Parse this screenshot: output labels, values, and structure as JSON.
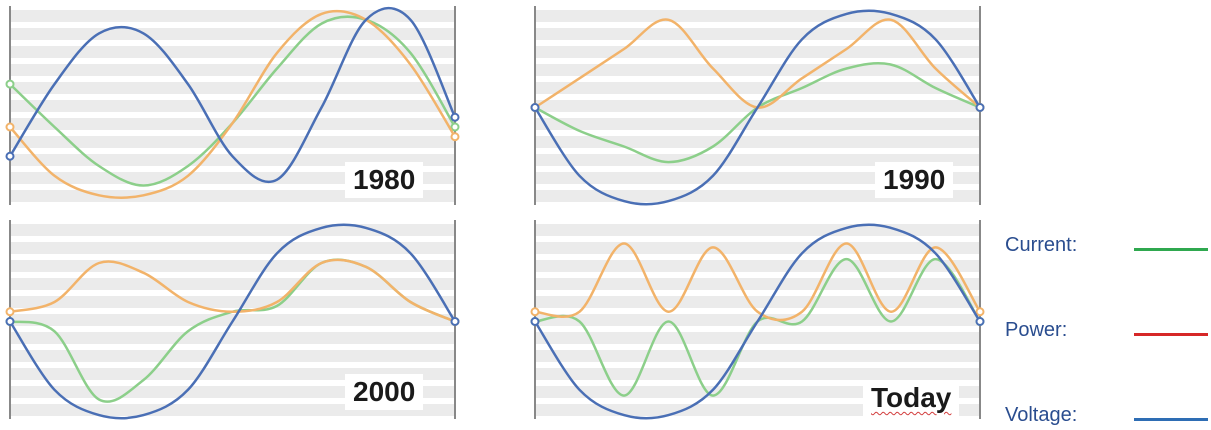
{
  "colors": {
    "current": "#8ccf8a",
    "power": "#f2b36a",
    "voltage": "#4a6fb5",
    "stripe": "#ebebeb",
    "axis": "#888888"
  },
  "legend": {
    "items": [
      {
        "label": "Current:",
        "swatch_color": "#2fa84f"
      },
      {
        "label": "Power:",
        "swatch_color": "#d62728"
      },
      {
        "label": "Voltage:",
        "swatch_color": "#2e6db4"
      }
    ]
  },
  "chart_data": [
    {
      "type": "line",
      "title": "1980",
      "x": [
        0,
        0.1,
        0.2,
        0.3,
        0.4,
        0.5,
        0.6,
        0.7,
        0.8,
        0.9,
        1
      ],
      "series": [
        {
          "values": [
            0.25,
            0.62,
            0.88,
            0.88,
            0.62,
            0.25,
            0.13,
            0.5,
            0.95,
            0.95,
            0.45
          ],
          "color_key": "voltage"
        },
        {
          "values": [
            0.62,
            0.4,
            0.2,
            0.1,
            0.2,
            0.42,
            0.7,
            0.93,
            0.95,
            0.78,
            0.4
          ],
          "color_key": "current"
        },
        {
          "values": [
            0.4,
            0.15,
            0.05,
            0.05,
            0.15,
            0.42,
            0.78,
            0.98,
            0.95,
            0.72,
            0.35
          ],
          "color_key": "power"
        }
      ]
    },
    {
      "type": "line",
      "title": "1990",
      "x": [
        0,
        0.1,
        0.2,
        0.3,
        0.4,
        0.5,
        0.6,
        0.7,
        0.8,
        0.9,
        1
      ],
      "series": [
        {
          "values": [
            0.5,
            0.15,
            0.02,
            0.02,
            0.15,
            0.5,
            0.85,
            0.98,
            0.98,
            0.85,
            0.5
          ],
          "color_key": "voltage"
        },
        {
          "values": [
            0.5,
            0.38,
            0.3,
            0.22,
            0.3,
            0.5,
            0.6,
            0.7,
            0.72,
            0.6,
            0.5
          ],
          "color_key": "current"
        },
        {
          "values": [
            0.5,
            0.65,
            0.8,
            0.95,
            0.7,
            0.5,
            0.65,
            0.8,
            0.95,
            0.7,
            0.5
          ],
          "color_key": "power"
        }
      ]
    },
    {
      "type": "line",
      "title": "2000",
      "x": [
        0,
        0.1,
        0.2,
        0.3,
        0.4,
        0.5,
        0.6,
        0.7,
        0.8,
        0.9,
        1
      ],
      "series": [
        {
          "values": [
            0.5,
            0.15,
            0.02,
            0.02,
            0.15,
            0.5,
            0.85,
            0.98,
            0.98,
            0.85,
            0.5
          ],
          "color_key": "voltage"
        },
        {
          "values": [
            0.5,
            0.45,
            0.1,
            0.2,
            0.45,
            0.55,
            0.58,
            0.8,
            0.78,
            0.6,
            0.5
          ],
          "color_key": "current"
        },
        {
          "values": [
            0.55,
            0.6,
            0.8,
            0.75,
            0.6,
            0.55,
            0.6,
            0.8,
            0.78,
            0.6,
            0.5
          ],
          "color_key": "power"
        }
      ]
    },
    {
      "type": "line",
      "title": "Today",
      "x": [
        0,
        0.1,
        0.2,
        0.3,
        0.4,
        0.5,
        0.6,
        0.7,
        0.8,
        0.9,
        1
      ],
      "series": [
        {
          "values": [
            0.5,
            0.15,
            0.02,
            0.02,
            0.15,
            0.5,
            0.85,
            0.98,
            0.98,
            0.85,
            0.5
          ],
          "color_key": "voltage"
        },
        {
          "values": [
            0.5,
            0.5,
            0.12,
            0.5,
            0.12,
            0.5,
            0.5,
            0.82,
            0.5,
            0.82,
            0.5
          ],
          "color_key": "current"
        },
        {
          "values": [
            0.55,
            0.55,
            0.9,
            0.55,
            0.88,
            0.55,
            0.55,
            0.9,
            0.55,
            0.88,
            0.55
          ],
          "color_key": "power"
        }
      ]
    }
  ]
}
